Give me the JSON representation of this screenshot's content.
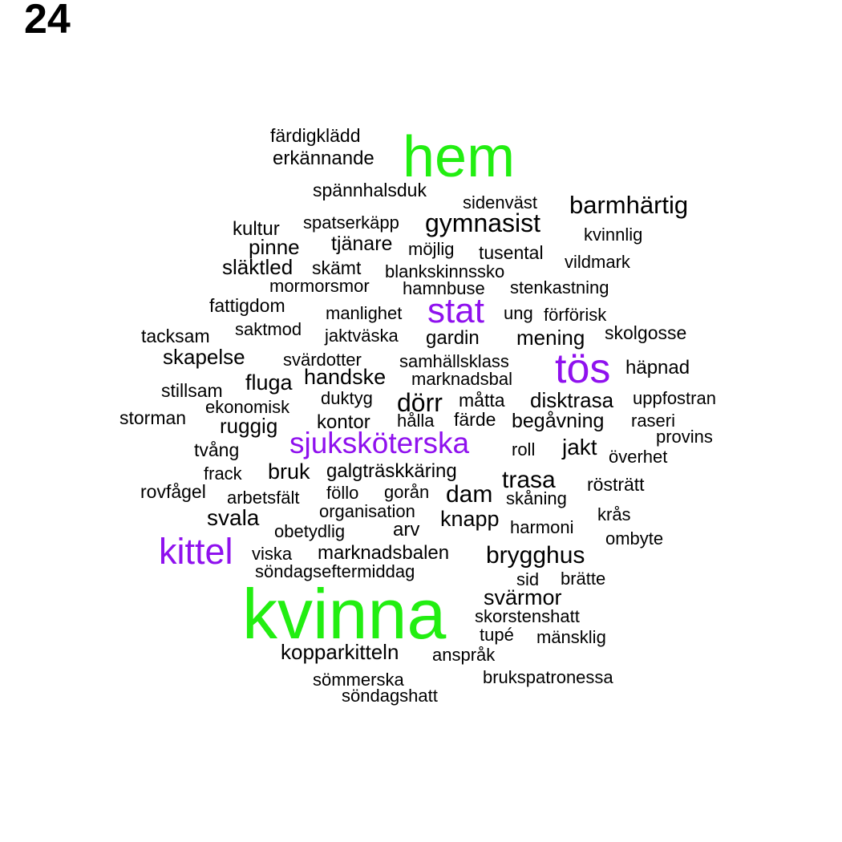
{
  "page_label": "24",
  "colors": {
    "green": "#22ee11",
    "purple": "#8f11ee",
    "black": "#000000"
  },
  "words": [
    {
      "text": "färdigklädd",
      "color": "black"
    },
    {
      "text": "hem",
      "color": "green"
    },
    {
      "text": "erkännande",
      "color": "black"
    },
    {
      "text": "spännhalsduk",
      "color": "black"
    },
    {
      "text": "sidenväst",
      "color": "black"
    },
    {
      "text": "barmhärtig",
      "color": "black"
    },
    {
      "text": "spatserkäpp",
      "color": "black"
    },
    {
      "text": "gymnasist",
      "color": "black"
    },
    {
      "text": "kultur",
      "color": "black"
    },
    {
      "text": "kvinnlig",
      "color": "black"
    },
    {
      "text": "pinne",
      "color": "black"
    },
    {
      "text": "tjänare",
      "color": "black"
    },
    {
      "text": "möjlig",
      "color": "black"
    },
    {
      "text": "tusental",
      "color": "black"
    },
    {
      "text": "vildmark",
      "color": "black"
    },
    {
      "text": "släktled",
      "color": "black"
    },
    {
      "text": "skämt",
      "color": "black"
    },
    {
      "text": "blankskinnssko",
      "color": "black"
    },
    {
      "text": "mormorsmor",
      "color": "black"
    },
    {
      "text": "hamnbuse",
      "color": "black"
    },
    {
      "text": "stenkastning",
      "color": "black"
    },
    {
      "text": "fattigdom",
      "color": "black"
    },
    {
      "text": "manlighet",
      "color": "black"
    },
    {
      "text": "stat",
      "color": "purple"
    },
    {
      "text": "ung",
      "color": "black"
    },
    {
      "text": "förförisk",
      "color": "black"
    },
    {
      "text": "tacksam",
      "color": "black"
    },
    {
      "text": "saktmod",
      "color": "black"
    },
    {
      "text": "jaktväska",
      "color": "black"
    },
    {
      "text": "gardin",
      "color": "black"
    },
    {
      "text": "mening",
      "color": "black"
    },
    {
      "text": "skolgosse",
      "color": "black"
    },
    {
      "text": "skapelse",
      "color": "black"
    },
    {
      "text": "svärdotter",
      "color": "black"
    },
    {
      "text": "samhällsklass",
      "color": "black"
    },
    {
      "text": "tös",
      "color": "purple"
    },
    {
      "text": "häpnad",
      "color": "black"
    },
    {
      "text": "handske",
      "color": "black"
    },
    {
      "text": "marknadsbal",
      "color": "black"
    },
    {
      "text": "fluga",
      "color": "black"
    },
    {
      "text": "stillsam",
      "color": "black"
    },
    {
      "text": "duktyg",
      "color": "black"
    },
    {
      "text": "dörr",
      "color": "black"
    },
    {
      "text": "måtta",
      "color": "black"
    },
    {
      "text": "disktrasa",
      "color": "black"
    },
    {
      "text": "uppfostran",
      "color": "black"
    },
    {
      "text": "ekonomisk",
      "color": "black"
    },
    {
      "text": "storman",
      "color": "black"
    },
    {
      "text": "ruggig",
      "color": "black"
    },
    {
      "text": "kontor",
      "color": "black"
    },
    {
      "text": "hålla",
      "color": "black"
    },
    {
      "text": "färde",
      "color": "black"
    },
    {
      "text": "begåvning",
      "color": "black"
    },
    {
      "text": "raseri",
      "color": "black"
    },
    {
      "text": "provins",
      "color": "black"
    },
    {
      "text": "sjuksköterska",
      "color": "purple"
    },
    {
      "text": "tvång",
      "color": "black"
    },
    {
      "text": "roll",
      "color": "black"
    },
    {
      "text": "jakt",
      "color": "black"
    },
    {
      "text": "överhet",
      "color": "black"
    },
    {
      "text": "frack",
      "color": "black"
    },
    {
      "text": "bruk",
      "color": "black"
    },
    {
      "text": "galgträskkäring",
      "color": "black"
    },
    {
      "text": "trasa",
      "color": "black"
    },
    {
      "text": "rösträtt",
      "color": "black"
    },
    {
      "text": "rovfågel",
      "color": "black"
    },
    {
      "text": "arbetsfält",
      "color": "black"
    },
    {
      "text": "föllo",
      "color": "black"
    },
    {
      "text": "gorån",
      "color": "black"
    },
    {
      "text": "dam",
      "color": "black"
    },
    {
      "text": "skåning",
      "color": "black"
    },
    {
      "text": "svala",
      "color": "black"
    },
    {
      "text": "organisation",
      "color": "black"
    },
    {
      "text": "knapp",
      "color": "black"
    },
    {
      "text": "krås",
      "color": "black"
    },
    {
      "text": "obetydlig",
      "color": "black"
    },
    {
      "text": "arv",
      "color": "black"
    },
    {
      "text": "harmoni",
      "color": "black"
    },
    {
      "text": "ombyte",
      "color": "black"
    },
    {
      "text": "kittel",
      "color": "purple"
    },
    {
      "text": "viska",
      "color": "black"
    },
    {
      "text": "marknadsbalen",
      "color": "black"
    },
    {
      "text": "brygghus",
      "color": "black"
    },
    {
      "text": "söndagseftermiddag",
      "color": "black"
    },
    {
      "text": "sid",
      "color": "black"
    },
    {
      "text": "brätte",
      "color": "black"
    },
    {
      "text": "svärmor",
      "color": "black"
    },
    {
      "text": "kvinna",
      "color": "green"
    },
    {
      "text": "skorstenshatt",
      "color": "black"
    },
    {
      "text": "tupé",
      "color": "black"
    },
    {
      "text": "mänsklig",
      "color": "black"
    },
    {
      "text": "kopparkitteln",
      "color": "black"
    },
    {
      "text": "anspråk",
      "color": "black"
    },
    {
      "text": "sömmerska",
      "color": "black"
    },
    {
      "text": "brukspatronessa",
      "color": "black"
    },
    {
      "text": "söndagshatt",
      "color": "black"
    }
  ]
}
